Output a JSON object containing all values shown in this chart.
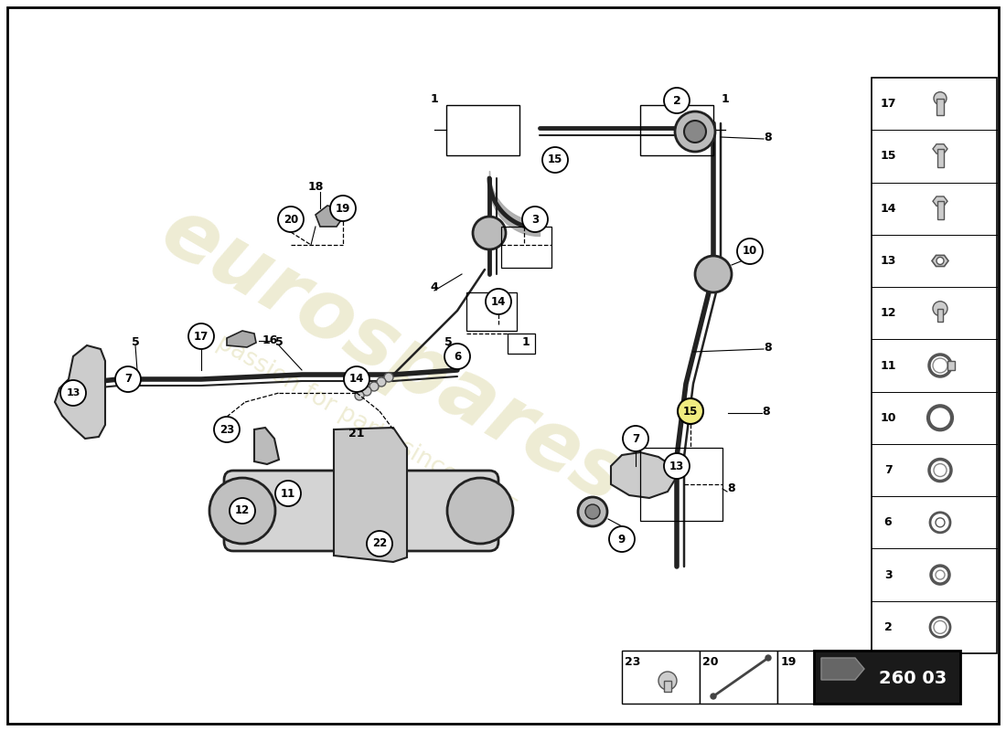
{
  "bg_color": "#ffffff",
  "diagram_number": "260 03",
  "watermark_text": "eurospares",
  "watermark_subtext": "a passion for parts since 1985",
  "right_panel_nums": [
    "17",
    "15",
    "14",
    "13",
    "12",
    "11",
    "10",
    "7",
    "6",
    "3",
    "2"
  ],
  "bottom_panel_nums": [
    "23",
    "20",
    "19"
  ]
}
